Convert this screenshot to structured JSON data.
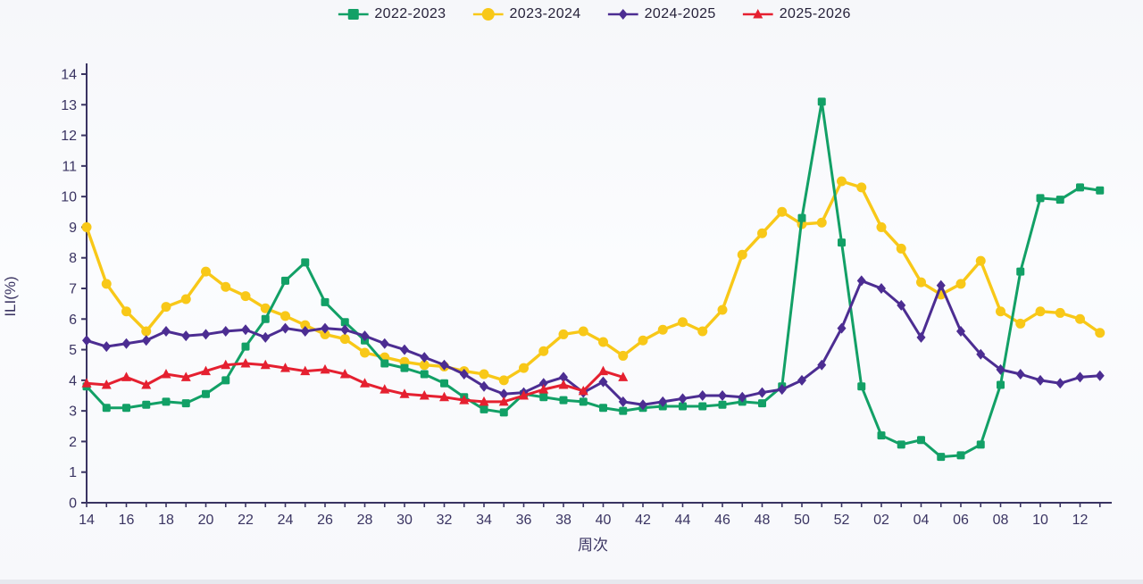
{
  "chart_data": {
    "type": "line",
    "title": "",
    "xlabel": "周次",
    "ylabel": "ILI(%)",
    "ylim": [
      0,
      14
    ],
    "y_tick_step": 1,
    "grid": false,
    "legend_position": "top",
    "x_labels_every": 2,
    "categories": [
      "14",
      "15",
      "16",
      "17",
      "18",
      "19",
      "20",
      "21",
      "22",
      "23",
      "24",
      "25",
      "26",
      "27",
      "28",
      "29",
      "30",
      "31",
      "32",
      "33",
      "34",
      "35",
      "36",
      "37",
      "38",
      "39",
      "40",
      "41",
      "42",
      "43",
      "44",
      "45",
      "46",
      "47",
      "48",
      "49",
      "50",
      "51",
      "52",
      "01",
      "02",
      "03",
      "04",
      "05",
      "06",
      "07",
      "08",
      "09",
      "10",
      "11",
      "12",
      "13"
    ],
    "series": [
      {
        "name": "2022-2023",
        "color": "#12a066",
        "marker": "square",
        "values": [
          3.8,
          3.1,
          3.1,
          3.2,
          3.3,
          3.25,
          3.55,
          4.0,
          5.1,
          6.0,
          7.25,
          7.85,
          6.55,
          5.9,
          5.3,
          4.55,
          4.4,
          4.2,
          3.9,
          3.45,
          3.05,
          2.95,
          3.55,
          3.45,
          3.35,
          3.3,
          3.1,
          3.0,
          3.1,
          3.15,
          3.15,
          3.15,
          3.2,
          3.3,
          3.25,
          3.8,
          9.3,
          13.1,
          8.5,
          3.8,
          2.2,
          1.9,
          2.05,
          1.5,
          1.55,
          1.9,
          3.85,
          7.55,
          9.95,
          9.9,
          10.3,
          10.2
        ]
      },
      {
        "name": "2023-2024",
        "color": "#f8c818",
        "marker": "circle",
        "values": [
          9.0,
          7.15,
          6.25,
          5.6,
          6.4,
          6.65,
          7.55,
          7.05,
          6.75,
          6.35,
          6.1,
          5.8,
          5.5,
          5.35,
          4.9,
          4.75,
          4.6,
          4.5,
          4.45,
          4.3,
          4.2,
          4.0,
          4.4,
          4.95,
          5.5,
          5.6,
          5.25,
          4.8,
          5.3,
          5.65,
          5.9,
          5.6,
          6.3,
          8.1,
          8.8,
          9.5,
          9.1,
          9.15,
          10.5,
          10.3,
          9.0,
          8.3,
          7.2,
          6.8,
          7.15,
          7.9,
          6.25,
          5.85,
          6.25,
          6.2,
          6.0,
          5.55
        ]
      },
      {
        "name": "2024-2025",
        "color": "#4c2d92",
        "marker": "diamond",
        "values": [
          5.3,
          5.1,
          5.2,
          5.3,
          5.6,
          5.45,
          5.5,
          5.6,
          5.65,
          5.4,
          5.7,
          5.6,
          5.7,
          5.65,
          5.45,
          5.2,
          5.0,
          4.75,
          4.5,
          4.2,
          3.8,
          3.55,
          3.6,
          3.9,
          4.1,
          3.6,
          3.95,
          3.3,
          3.2,
          3.3,
          3.4,
          3.5,
          3.5,
          3.45,
          3.6,
          3.7,
          4.0,
          4.5,
          5.7,
          7.25,
          7.0,
          6.45,
          5.4,
          7.1,
          5.6,
          4.85,
          4.35,
          4.2,
          4.0,
          3.9,
          4.1,
          4.15
        ]
      },
      {
        "name": "2025-2026",
        "color": "#e52030",
        "marker": "triangle",
        "values": [
          3.9,
          3.85,
          4.1,
          3.85,
          4.2,
          4.1,
          4.3,
          4.5,
          4.55,
          4.5,
          4.4,
          4.3,
          4.35,
          4.2,
          3.9,
          3.7,
          3.55,
          3.5,
          3.45,
          3.35,
          3.3,
          3.3,
          3.5,
          3.7,
          3.85,
          3.65,
          4.3,
          4.1
        ]
      }
    ],
    "axis_color": "#3a3462",
    "tick_label_color": "#3a3462"
  }
}
